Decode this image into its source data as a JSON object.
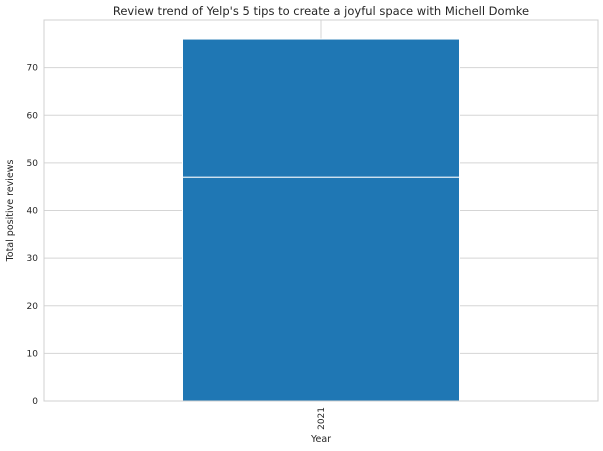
{
  "chart_data": {
    "type": "bar",
    "title": "Review trend of Yelp's 5 tips to create a joyful space with Michell Domke",
    "xlabel": "Year",
    "ylabel": "Total positive reviews",
    "categories": [
      "2021"
    ],
    "stacked": true,
    "series": [
      {
        "values": [
          47
        ]
      },
      {
        "values": [
          29
        ]
      }
    ],
    "ylim": [
      0,
      80
    ],
    "yticks": [
      0,
      10,
      20,
      30,
      40,
      50,
      60,
      70
    ],
    "grid": true,
    "colors": {
      "bar": "#1f77b4",
      "segment_edge": "#ffffff",
      "grid": "#d5d5d5"
    }
  }
}
